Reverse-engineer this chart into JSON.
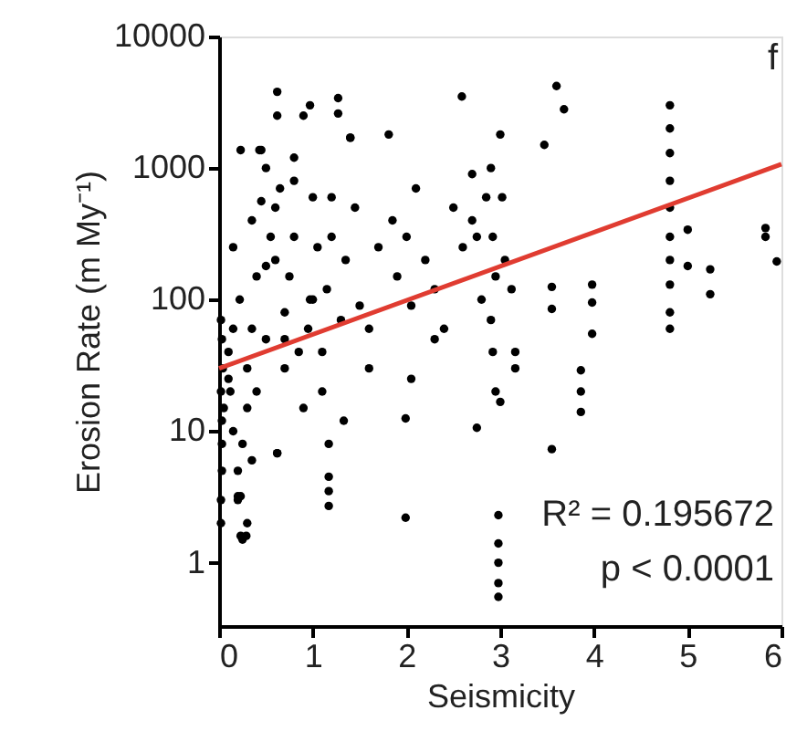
{
  "chart_data": {
    "type": "scatter",
    "xlabel": "Seismicity",
    "ylabel": "Erosion Rate (m My⁻¹)",
    "annotations": [
      "f",
      "R² = 0.195672",
      "p < 0.0001"
    ],
    "xlim": [
      0,
      6
    ],
    "ylim": [
      0.33,
      10000
    ],
    "xticks": [
      0,
      1,
      2,
      3,
      4,
      5,
      6
    ],
    "yticks": [
      1,
      10,
      100,
      1000,
      10000
    ],
    "log": "y",
    "grid": false,
    "marker": "circle",
    "series": [
      {
        "color": "#000000",
        "x": [
          0.02,
          0.02,
          0.03,
          0.03,
          0.03,
          0.02,
          0.04,
          0.03,
          0.02,
          0.05,
          0.1,
          0.12,
          0.15,
          0.2,
          0.2,
          0.22,
          0.25,
          0.25,
          0.3,
          0.3,
          0.3,
          0.35,
          0.35,
          0.4,
          0.4,
          0.23,
          0.29,
          0.2,
          0.15,
          0.1,
          0.45,
          0.5,
          0.5,
          0.55,
          0.6,
          0.6,
          0.62,
          0.62,
          0.65,
          0.7,
          0.7,
          0.75,
          0.8,
          0.8,
          0.85,
          0.9,
          0.9,
          0.97,
          1.0,
          1.0,
          1.05,
          1.1,
          1.15,
          1.2,
          1.27,
          1.27,
          1.3,
          1.35,
          1.4,
          1.45,
          1.5,
          1.6,
          1.7,
          1.81,
          1.85,
          1.9,
          2.0,
          2.05,
          2.1,
          2.2,
          2.3,
          2.4,
          2.5,
          2.59,
          2.6,
          2.7,
          2.75,
          2.8,
          2.85,
          2.9,
          2.9,
          2.92,
          2.92,
          2.95,
          2.95,
          3.0,
          3.0,
          3.02,
          3.05,
          3.12,
          3.16,
          3.16,
          2.98,
          2.98,
          2.98,
          2.98,
          2.98,
          1.99,
          1.99,
          2.05,
          1.17,
          1.17,
          1.17,
          1.17,
          1.33,
          0.62,
          0.23,
          0.23,
          0.43,
          0.45,
          1.4,
          0.62,
          0.97,
          3.47,
          3.6,
          3.68,
          3.55,
          3.55,
          3.55,
          3.86,
          3.86,
          3.86,
          3.98,
          3.98,
          3.98,
          4.81,
          4.81,
          4.81,
          4.81,
          4.81,
          4.81,
          4.81,
          4.81,
          4.81,
          4.81,
          5.0,
          5.0,
          5.24,
          5.24,
          5.83,
          5.83,
          5.95,
          2.75,
          1.2,
          0.8,
          0.5,
          0.35,
          0.15,
          0.7,
          1.1,
          1.6,
          2.3,
          2.7,
          0.95
        ],
        "values": [
          2,
          3,
          5,
          8,
          12,
          20,
          30,
          50,
          70,
          15,
          40,
          20,
          10,
          3,
          5,
          100,
          8,
          1.5,
          15,
          30,
          2,
          60,
          6,
          150,
          20,
          1370,
          1.6,
          3.2,
          60,
          25,
          1370,
          1000,
          50,
          300,
          500,
          200,
          3800,
          2500,
          700,
          80,
          30,
          150,
          300,
          1200,
          40,
          2500,
          15,
          3000,
          600,
          100,
          250,
          40,
          120,
          300,
          3400,
          2600,
          70,
          200,
          1700,
          500,
          90,
          60,
          250,
          1800,
          400,
          150,
          300,
          90,
          700,
          200,
          120,
          60,
          500,
          3500,
          250,
          900,
          300,
          100,
          600,
          1000,
          70,
          300,
          40,
          150,
          20,
          1800,
          16.7,
          600,
          200,
          120,
          40,
          30,
          2.3,
          1.4,
          1.0,
          0.7,
          0.55,
          2.2,
          12.5,
          25,
          8,
          4.5,
          3.5,
          2.7,
          12,
          6.8,
          1.6,
          3.2,
          1370,
          560,
          1700,
          6.8,
          100,
          1500,
          4200,
          2800,
          125,
          85,
          7.3,
          29,
          20,
          14,
          130,
          95,
          55,
          3000,
          2000,
          1300,
          800,
          500,
          300,
          200,
          130,
          80,
          60,
          340,
          180,
          170,
          110,
          350,
          300,
          195,
          10.6,
          600,
          800,
          180,
          400,
          250,
          50,
          20,
          30,
          50,
          400,
          60
        ]
      },
      {
        "type": "line",
        "marker": "none",
        "color": "#e03c31",
        "x": [
          0,
          6
        ],
        "values": [
          30,
          1070
        ]
      }
    ]
  }
}
